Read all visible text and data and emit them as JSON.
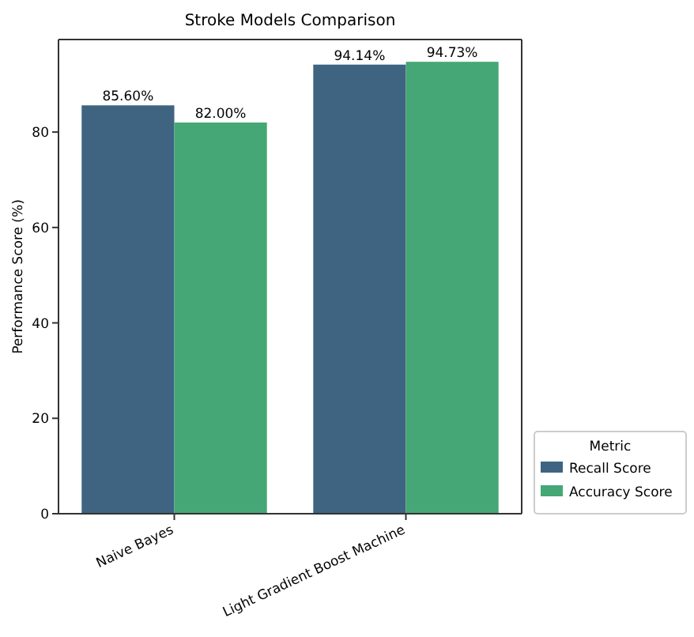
{
  "chart_data": {
    "type": "bar",
    "title": "Stroke Models Comparison",
    "ylabel": "Performance Score (%)",
    "legend_title": "Metric",
    "categories": [
      "Naive Bayes",
      "Light Gradient Boost Machine"
    ],
    "series": [
      {
        "name": "Recall Score",
        "color": "#3e6481",
        "values": [
          85.6,
          94.14
        ],
        "value_labels": [
          "85.60%",
          "94.14%"
        ]
      },
      {
        "name": "Accuracy Score",
        "color": "#45a775",
        "values": [
          82.0,
          94.73
        ],
        "value_labels": [
          "82.00%",
          "94.73%"
        ]
      }
    ],
    "ylim": [
      0,
      99.4
    ],
    "yticks": [
      0,
      20,
      40,
      60,
      80
    ],
    "legend": "bottom right",
    "grid": false
  }
}
